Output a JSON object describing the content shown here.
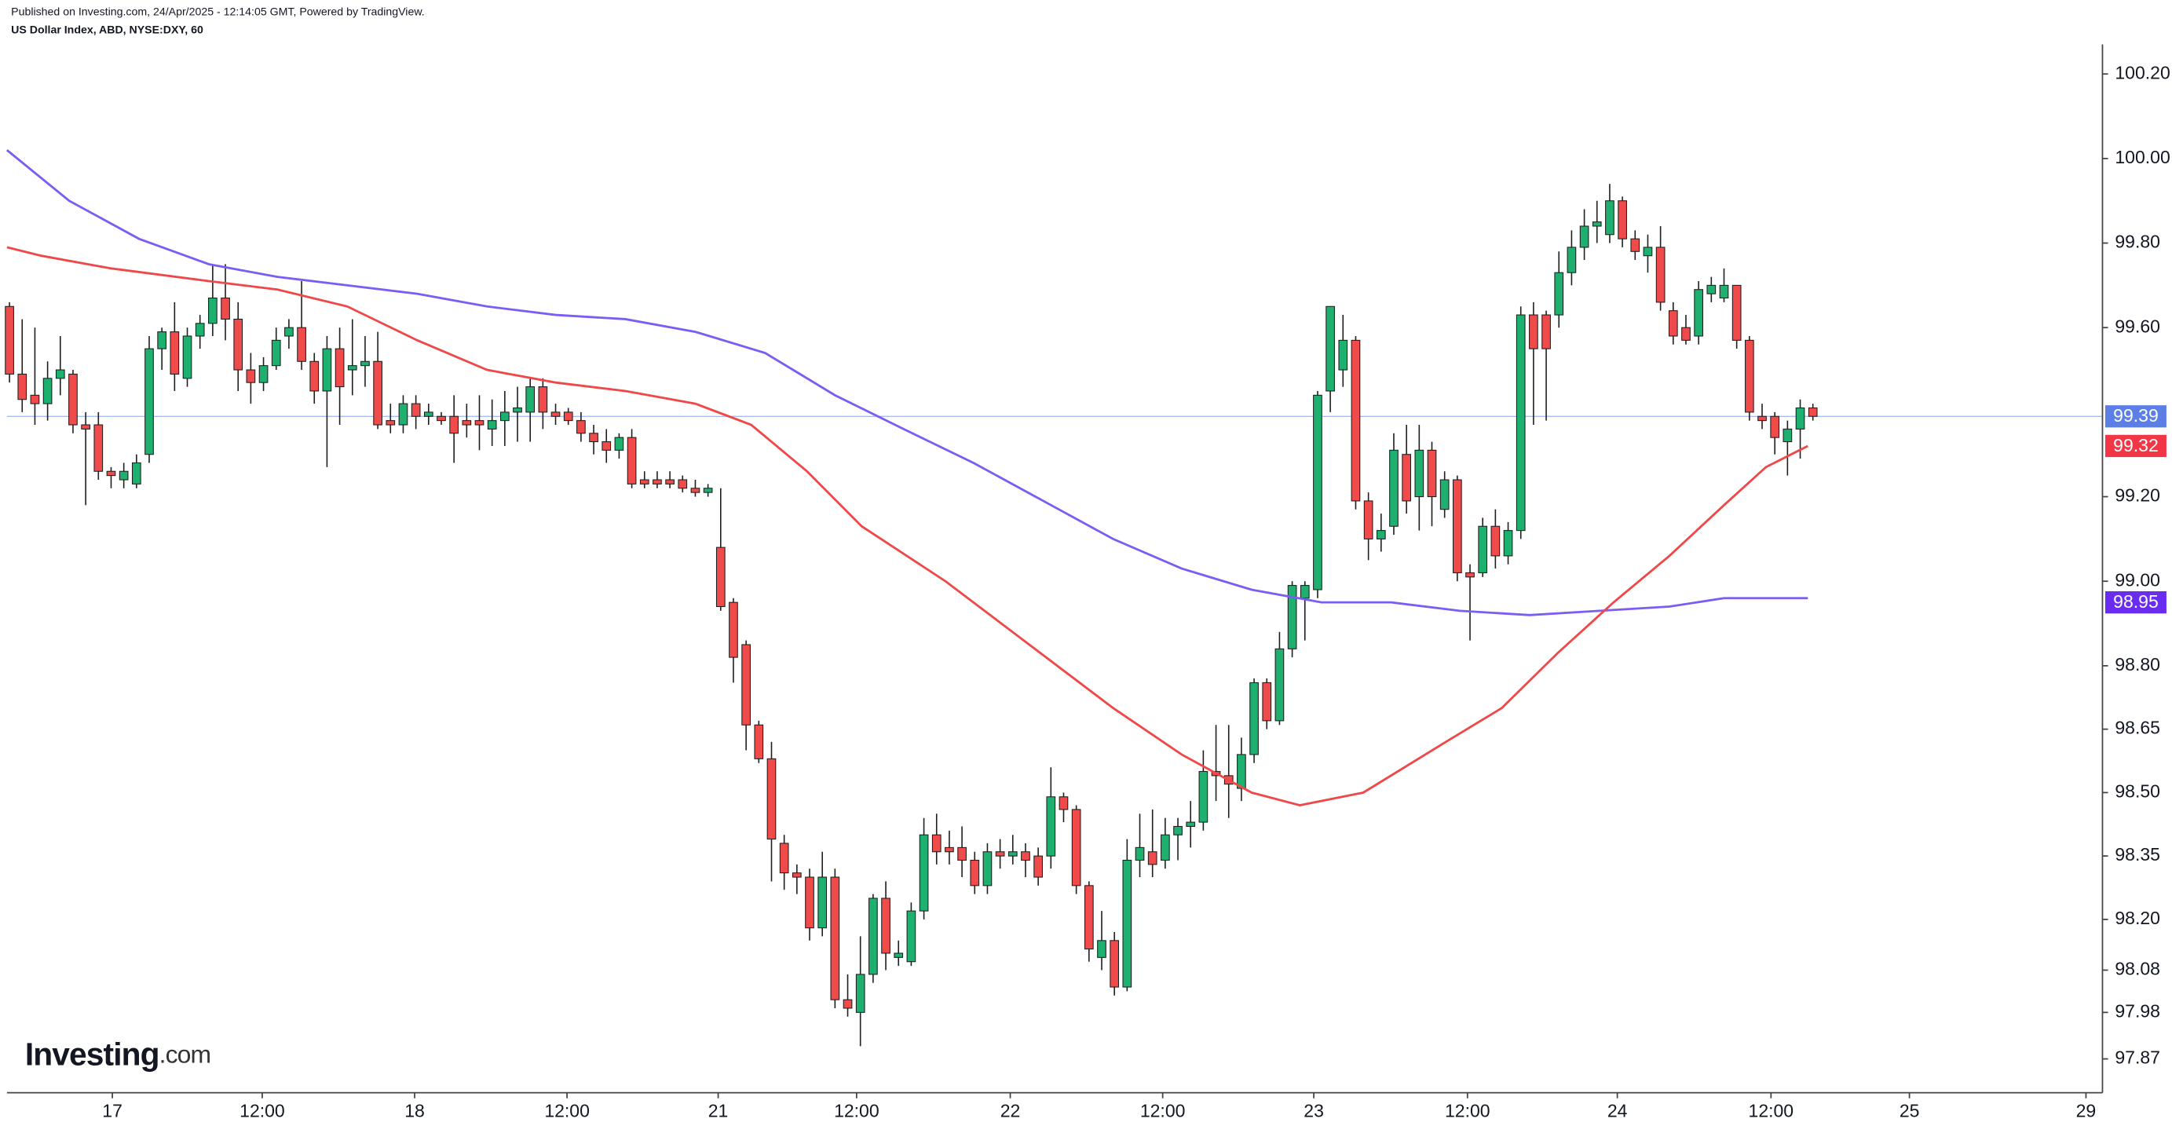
{
  "header": {
    "published": "Published on Investing.com, 24/Apr/2025 - 12:14:05 GMT, Powered by TradingView.",
    "symbol": "US Dollar Index, ABD, NYSE:DXY, 60"
  },
  "logo": {
    "brand": "Investing",
    "suffix": ".com"
  },
  "chart_data": {
    "type": "candlestick",
    "up_color": "#1db06f",
    "down_color": "#ef4b4b",
    "outline_color": "#1e1e1e",
    "xlim": [
      -0.2,
      164.8
    ],
    "xticks": [
      {
        "value": 8.1,
        "label": "17"
      },
      {
        "value": 19.9,
        "label": "12:00"
      },
      {
        "value": 31.9,
        "label": "18"
      },
      {
        "value": 43.9,
        "label": "12:00"
      },
      {
        "value": 55.8,
        "label": "21"
      },
      {
        "value": 66.7,
        "label": "12:00"
      },
      {
        "value": 78.8,
        "label": "22"
      },
      {
        "value": 90.8,
        "label": "12:00"
      },
      {
        "value": 102.7,
        "label": "23"
      },
      {
        "value": 114.8,
        "label": "12:00"
      },
      {
        "value": 126.6,
        "label": "24"
      },
      {
        "value": 138.7,
        "label": "12:00"
      },
      {
        "value": 149.6,
        "label": "25"
      },
      {
        "value": 163.5,
        "label": "29"
      }
    ],
    "ylim": [
      97.79,
      100.27
    ],
    "yticks": [
      {
        "value": 100.2,
        "label": "100.20"
      },
      {
        "value": 100,
        "label": "100.00"
      },
      {
        "value": 99.8,
        "label": "99.80"
      },
      {
        "value": 99.6,
        "label": "99.60"
      },
      {
        "value": 99.2,
        "label": "99.20"
      },
      {
        "value": 99,
        "label": "99.00"
      },
      {
        "value": 98.8,
        "label": "98.80"
      },
      98.65,
      {
        "value": 98.5,
        "label": "98.50"
      },
      98.35,
      {
        "value": 98.2,
        "label": "98.20"
      },
      98.08,
      97.98,
      97.87
    ],
    "ohlc": [
      [
        99.65,
        99.66,
        99.47,
        99.49
      ],
      [
        99.49,
        99.62,
        99.4,
        99.43
      ],
      [
        99.44,
        99.6,
        99.37,
        99.42
      ],
      [
        99.42,
        99.52,
        99.38,
        99.48
      ],
      [
        99.48,
        99.58,
        99.44,
        99.5
      ],
      [
        99.49,
        99.5,
        99.35,
        99.37
      ],
      [
        99.37,
        99.4,
        99.18,
        99.36
      ],
      [
        99.37,
        99.4,
        99.24,
        99.26
      ],
      [
        99.26,
        99.27,
        99.22,
        99.25
      ],
      [
        99.24,
        99.28,
        99.22,
        99.26
      ],
      [
        99.23,
        99.3,
        99.22,
        99.28
      ],
      [
        99.3,
        99.58,
        99.28,
        99.55
      ],
      [
        99.55,
        99.6,
        99.5,
        99.59
      ],
      [
        99.59,
        99.66,
        99.45,
        99.49
      ],
      [
        99.48,
        99.6,
        99.46,
        99.58
      ],
      [
        99.58,
        99.63,
        99.55,
        99.61
      ],
      [
        99.61,
        99.75,
        99.58,
        99.67
      ],
      [
        99.67,
        99.75,
        99.57,
        99.62
      ],
      [
        99.62,
        99.66,
        99.45,
        99.5
      ],
      [
        99.5,
        99.54,
        99.42,
        99.47
      ],
      [
        99.47,
        99.53,
        99.45,
        99.51
      ],
      [
        99.51,
        99.6,
        99.5,
        99.57
      ],
      [
        99.58,
        99.62,
        99.55,
        99.6
      ],
      [
        99.6,
        99.71,
        99.5,
        99.52
      ],
      [
        99.52,
        99.54,
        99.42,
        99.45
      ],
      [
        99.45,
        99.58,
        99.27,
        99.55
      ],
      [
        99.55,
        99.6,
        99.37,
        99.46
      ],
      [
        99.5,
        99.62,
        99.44,
        99.51
      ],
      [
        99.51,
        99.58,
        99.46,
        99.52
      ],
      [
        99.52,
        99.59,
        99.36,
        99.37
      ],
      [
        99.38,
        99.42,
        99.35,
        99.37
      ],
      [
        99.37,
        99.44,
        99.35,
        99.42
      ],
      [
        99.42,
        99.44,
        99.36,
        99.39
      ],
      [
        99.39,
        99.42,
        99.37,
        99.4
      ],
      [
        99.39,
        99.4,
        99.37,
        99.38
      ],
      [
        99.39,
        99.44,
        99.28,
        99.35
      ],
      [
        99.38,
        99.42,
        99.34,
        99.37
      ],
      [
        99.38,
        99.44,
        99.31,
        99.37
      ],
      [
        99.36,
        99.43,
        99.32,
        99.38
      ],
      [
        99.38,
        99.45,
        99.32,
        99.4
      ],
      [
        99.4,
        99.46,
        99.33,
        99.41
      ],
      [
        99.4,
        99.48,
        99.33,
        99.46
      ],
      [
        99.46,
        99.48,
        99.36,
        99.4
      ],
      [
        99.4,
        99.42,
        99.37,
        99.39
      ],
      [
        99.4,
        99.41,
        99.37,
        99.38
      ],
      [
        99.38,
        99.4,
        99.33,
        99.35
      ],
      [
        99.35,
        99.37,
        99.3,
        99.33
      ],
      [
        99.33,
        99.36,
        99.28,
        99.31
      ],
      [
        99.31,
        99.35,
        99.29,
        99.34
      ],
      [
        99.34,
        99.36,
        99.22,
        99.23
      ],
      [
        99.24,
        99.26,
        99.22,
        99.23
      ],
      [
        99.24,
        99.26,
        99.22,
        99.23
      ],
      [
        99.24,
        99.26,
        99.22,
        99.23
      ],
      [
        99.24,
        99.25,
        99.21,
        99.22
      ],
      [
        99.22,
        99.24,
        99.2,
        99.21
      ],
      [
        99.21,
        99.23,
        99.2,
        99.22
      ],
      [
        99.08,
        99.22,
        98.93,
        98.94
      ],
      [
        98.95,
        98.96,
        98.76,
        98.82
      ],
      [
        98.85,
        98.86,
        98.6,
        98.66
      ],
      [
        98.66,
        98.67,
        98.57,
        98.58
      ],
      [
        98.58,
        98.62,
        98.29,
        98.39
      ],
      [
        98.38,
        98.4,
        98.27,
        98.31
      ],
      [
        98.31,
        98.33,
        98.26,
        98.3
      ],
      [
        98.3,
        98.32,
        98.15,
        98.18
      ],
      [
        98.18,
        98.36,
        98.16,
        98.3
      ],
      [
        98.3,
        98.32,
        97.99,
        98.01
      ],
      [
        98.01,
        98.07,
        97.97,
        97.99
      ],
      [
        97.98,
        98.16,
        97.9,
        98.07
      ],
      [
        98.07,
        98.26,
        98.05,
        98.25
      ],
      [
        98.25,
        98.29,
        98.08,
        98.12
      ],
      [
        98.11,
        98.15,
        98.09,
        98.12
      ],
      [
        98.1,
        98.24,
        98.09,
        98.22
      ],
      [
        98.22,
        98.44,
        98.2,
        98.4
      ],
      [
        98.4,
        98.45,
        98.33,
        98.36
      ],
      [
        98.37,
        98.41,
        98.33,
        98.36
      ],
      [
        98.37,
        98.42,
        98.3,
        98.34
      ],
      [
        98.34,
        98.36,
        98.26,
        98.28
      ],
      [
        98.28,
        98.38,
        98.26,
        98.36
      ],
      [
        98.36,
        98.39,
        98.32,
        98.35
      ],
      [
        98.35,
        98.4,
        98.33,
        98.36
      ],
      [
        98.36,
        98.38,
        98.3,
        98.34
      ],
      [
        98.35,
        98.37,
        98.28,
        98.3
      ],
      [
        98.35,
        98.56,
        98.32,
        98.49
      ],
      [
        98.49,
        98.5,
        98.43,
        98.46
      ],
      [
        98.46,
        98.47,
        98.26,
        98.28
      ],
      [
        98.28,
        98.29,
        98.1,
        98.13
      ],
      [
        98.11,
        98.22,
        98.08,
        98.15
      ],
      [
        98.15,
        98.17,
        98.02,
        98.04
      ],
      [
        98.04,
        98.39,
        98.03,
        98.34
      ],
      [
        98.34,
        98.45,
        98.3,
        98.37
      ],
      [
        98.36,
        98.46,
        98.3,
        98.33
      ],
      [
        98.34,
        98.44,
        98.32,
        98.4
      ],
      [
        98.4,
        98.44,
        98.34,
        98.42
      ],
      [
        98.42,
        98.48,
        98.37,
        98.43
      ],
      [
        98.43,
        98.6,
        98.41,
        98.55
      ],
      [
        98.55,
        98.66,
        98.48,
        98.54
      ],
      [
        98.54,
        98.66,
        98.44,
        98.52
      ],
      [
        98.51,
        98.63,
        98.48,
        98.59
      ],
      [
        98.59,
        98.77,
        98.57,
        98.76
      ],
      [
        98.76,
        98.77,
        98.65,
        98.67
      ],
      [
        98.67,
        98.88,
        98.66,
        98.84
      ],
      [
        98.84,
        99.0,
        98.82,
        98.99
      ],
      [
        98.96,
        99.0,
        98.86,
        98.99
      ],
      [
        98.98,
        99.45,
        98.96,
        99.44
      ],
      [
        99.45,
        99.65,
        99.4,
        99.65
      ],
      [
        99.5,
        99.63,
        99.46,
        99.57
      ],
      [
        99.57,
        99.58,
        99.17,
        99.19
      ],
      [
        99.19,
        99.21,
        99.05,
        99.1
      ],
      [
        99.1,
        99.16,
        99.07,
        99.12
      ],
      [
        99.13,
        99.35,
        99.11,
        99.31
      ],
      [
        99.3,
        99.37,
        99.16,
        99.19
      ],
      [
        99.2,
        99.37,
        99.12,
        99.31
      ],
      [
        99.31,
        99.33,
        99.13,
        99.2
      ],
      [
        99.17,
        99.26,
        99.15,
        99.24
      ],
      [
        99.24,
        99.25,
        99.0,
        99.02
      ],
      [
        99.02,
        99.04,
        98.86,
        99.01
      ],
      [
        99.02,
        99.15,
        99.01,
        99.13
      ],
      [
        99.13,
        99.17,
        99.03,
        99.06
      ],
      [
        99.06,
        99.14,
        99.04,
        99.12
      ],
      [
        99.12,
        99.65,
        99.1,
        99.63
      ],
      [
        99.63,
        99.66,
        99.37,
        99.55
      ],
      [
        99.63,
        99.64,
        99.38,
        99.55
      ],
      [
        99.63,
        99.78,
        99.6,
        99.73
      ],
      [
        99.73,
        99.83,
        99.7,
        99.79
      ],
      [
        99.79,
        99.88,
        99.76,
        99.84
      ],
      [
        99.84,
        99.9,
        99.8,
        99.85
      ],
      [
        99.82,
        99.94,
        99.8,
        99.9
      ],
      [
        99.9,
        99.91,
        99.79,
        99.81
      ],
      [
        99.81,
        99.83,
        99.76,
        99.78
      ],
      [
        99.77,
        99.82,
        99.73,
        99.79
      ],
      [
        99.79,
        99.84,
        99.64,
        99.66
      ],
      [
        99.64,
        99.66,
        99.56,
        99.58
      ],
      [
        99.6,
        99.63,
        99.56,
        99.57
      ],
      [
        99.58,
        99.71,
        99.56,
        99.69
      ],
      [
        99.68,
        99.72,
        99.66,
        99.7
      ],
      [
        99.67,
        99.74,
        99.66,
        99.7
      ],
      [
        99.7,
        99.7,
        99.55,
        99.57
      ],
      [
        99.57,
        99.58,
        99.38,
        99.4
      ],
      [
        99.39,
        99.42,
        99.36,
        99.38
      ],
      [
        99.39,
        99.4,
        99.3,
        99.34
      ],
      [
        99.33,
        99.38,
        99.25,
        99.36
      ],
      [
        99.36,
        99.43,
        99.29,
        99.41
      ],
      [
        99.41,
        99.42,
        99.38,
        99.39
      ]
    ],
    "moving_averages": [
      {
        "color": "#7b5cf5",
        "x": [
          -0.2,
          4.7,
          10.2,
          15.7,
          21.1,
          26.6,
          32.1,
          37.6,
          43.0,
          48.5,
          54.0,
          59.5,
          65.0,
          70.4,
          75.9,
          81.4,
          86.9,
          92.3,
          97.8,
          103.3,
          108.8,
          114.2,
          119.7,
          125.2,
          130.7,
          135.0,
          141.6
        ],
        "values": [
          100.02,
          99.9,
          99.81,
          99.75,
          99.72,
          99.7,
          99.68,
          99.65,
          99.63,
          99.62,
          99.59,
          99.54,
          99.44,
          99.36,
          99.28,
          99.19,
          99.1,
          99.03,
          98.98,
          98.95,
          98.95,
          98.93,
          98.92,
          98.93,
          98.94,
          98.96,
          98.96
        ]
      },
      {
        "color": "#f04848",
        "x": [
          -0.2,
          2.5,
          8.0,
          15.7,
          21.1,
          26.6,
          32.1,
          37.6,
          43.0,
          48.5,
          54.0,
          58.4,
          62.8,
          67.1,
          73.7,
          80.3,
          86.9,
          92.3,
          97.8,
          101.6,
          106.6,
          113.1,
          117.5,
          121.9,
          126.3,
          130.7,
          135.0,
          138.3,
          141.6
        ],
        "values": [
          99.79,
          99.77,
          99.74,
          99.71,
          99.69,
          99.65,
          99.57,
          99.5,
          99.47,
          99.45,
          99.42,
          99.37,
          99.26,
          99.13,
          99.0,
          98.85,
          98.7,
          98.59,
          98.5,
          98.47,
          98.5,
          98.62,
          98.7,
          98.83,
          98.95,
          99.06,
          99.18,
          99.27,
          99.32
        ]
      }
    ],
    "price_tags": [
      {
        "value": 99.39,
        "color": "#5b7fe6",
        "line": true
      },
      {
        "value": 99.32,
        "color": "#f23645",
        "line": false
      },
      {
        "value": 98.95,
        "color": "#6a2cf0",
        "line": false
      }
    ]
  }
}
